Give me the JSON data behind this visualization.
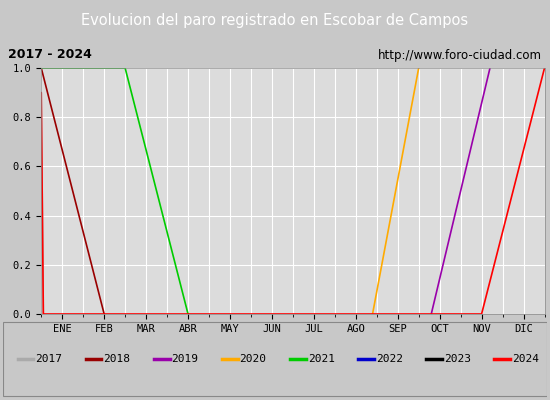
{
  "title": "Evolucion del paro registrado en Escobar de Campos",
  "subtitle_left": "2017 - 2024",
  "subtitle_right": "http://www.foro-ciudad.com",
  "ylim": [
    0.0,
    1.0
  ],
  "months": [
    "ENE",
    "FEB",
    "MAR",
    "ABR",
    "MAY",
    "JUN",
    "JUL",
    "AGO",
    "SEP",
    "OCT",
    "NOV",
    "DIC"
  ],
  "background_color": "#c8c8c8",
  "plot_bg_color": "#dcdcdc",
  "title_bg_color": "#4d8fc4",
  "title_color": "#ffffff",
  "subtitle_bg_color": "#f0f0f0",
  "legend_bg_color": "#f0f0f0",
  "series": [
    {
      "year": "2017",
      "color": "#aaaaaa",
      "x": [
        0.0,
        0.05
      ],
      "y": [
        0.9,
        0.0
      ]
    },
    {
      "year": "2018",
      "color": "#990000",
      "x": [
        0.0,
        1.5
      ],
      "y": [
        1.0,
        0.0
      ]
    },
    {
      "year": "2019",
      "color": "#9900aa",
      "x": [
        9.3,
        10.7
      ],
      "y": [
        0.0,
        1.0
      ]
    },
    {
      "year": "2020",
      "color": "#ffaa00",
      "x": [
        7.9,
        9.0
      ],
      "y": [
        0.0,
        1.0
      ]
    },
    {
      "year": "2021",
      "color": "#00cc00",
      "x": [
        0.0,
        2.0,
        3.5
      ],
      "y": [
        1.0,
        1.0,
        0.0
      ]
    },
    {
      "year": "2022",
      "color": "#0000cc",
      "x": [],
      "y": []
    },
    {
      "year": "2023",
      "color": "#000000",
      "x": [],
      "y": []
    },
    {
      "year": "2024",
      "color": "#ff0000",
      "x": [
        0.0,
        0.05,
        10.5,
        12.0
      ],
      "y": [
        0.9,
        0.0,
        0.0,
        1.0
      ]
    }
  ],
  "legend_items": [
    {
      "year": "2017",
      "color": "#aaaaaa"
    },
    {
      "year": "2018",
      "color": "#990000"
    },
    {
      "year": "2019",
      "color": "#9900aa"
    },
    {
      "year": "2020",
      "color": "#ffaa00"
    },
    {
      "year": "2021",
      "color": "#00cc00"
    },
    {
      "year": "2022",
      "color": "#0000cc"
    },
    {
      "year": "2023",
      "color": "#000000"
    },
    {
      "year": "2024",
      "color": "#ff0000"
    }
  ]
}
